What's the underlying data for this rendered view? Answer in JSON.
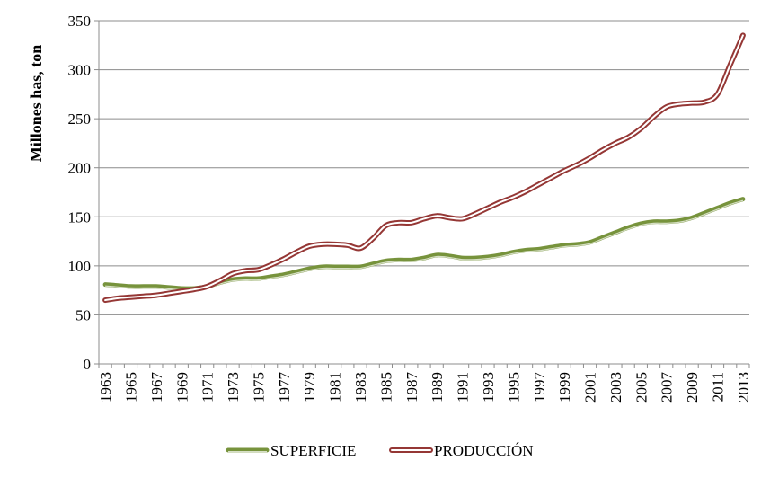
{
  "chart_data": {
    "type": "line",
    "title": "",
    "xlabel": "",
    "ylabel": "Millones has, ton",
    "ylim": [
      0,
      350
    ],
    "yticks": [
      0,
      50,
      100,
      150,
      200,
      250,
      300,
      350
    ],
    "grid": "horizontal",
    "legend_position": "bottom",
    "categories": [
      "1963",
      "1964",
      "1965",
      "1966",
      "1967",
      "1968",
      "1969",
      "1970",
      "1971",
      "1972",
      "1973",
      "1974",
      "1975",
      "1976",
      "1977",
      "1978",
      "1979",
      "1980",
      "1981",
      "1982",
      "1983",
      "1984",
      "1985",
      "1986",
      "1987",
      "1988",
      "1989",
      "1990",
      "1991",
      "1992",
      "1993",
      "1994",
      "1995",
      "1996",
      "1997",
      "1998",
      "1999",
      "2000",
      "2001",
      "2002",
      "2003",
      "2004",
      "2005",
      "2006",
      "2007",
      "2008",
      "2009",
      "2010",
      "2011",
      "2012",
      "2013"
    ],
    "x_tick_labels": [
      "1963",
      "1965",
      "1967",
      "1969",
      "1971",
      "1973",
      "1975",
      "1977",
      "1979",
      "1981",
      "1983",
      "1985",
      "1987",
      "1989",
      "1991",
      "1993",
      "1995",
      "1997",
      "1999",
      "2001",
      "2003",
      "2005",
      "2007",
      "2009",
      "2011",
      "2013"
    ],
    "series": [
      {
        "name": "SUPERFICIE",
        "color": "#77933C",
        "values": [
          81,
          80,
          79,
          79,
          79,
          78,
          77,
          77,
          79,
          83,
          86,
          87,
          87,
          89,
          91,
          94,
          97,
          99,
          99,
          99,
          99,
          102,
          105,
          106,
          106,
          108,
          111,
          110,
          108,
          108,
          109,
          111,
          114,
          116,
          117,
          119,
          121,
          122,
          124,
          129,
          134,
          139,
          143,
          145,
          145,
          146,
          149,
          154,
          159,
          164,
          168
        ]
      },
      {
        "name": "PRODUCCIÓN",
        "color": "#953735",
        "values": [
          65,
          67,
          68,
          69,
          70,
          72,
          74,
          76,
          79,
          85,
          92,
          95,
          96,
          101,
          107,
          114,
          120,
          122,
          122,
          121,
          118,
          128,
          141,
          144,
          144,
          148,
          151,
          149,
          148,
          153,
          159,
          165,
          170,
          176,
          183,
          190,
          197,
          203,
          210,
          218,
          225,
          231,
          240,
          252,
          262,
          265,
          266,
          267,
          275,
          305,
          335
        ]
      }
    ]
  }
}
